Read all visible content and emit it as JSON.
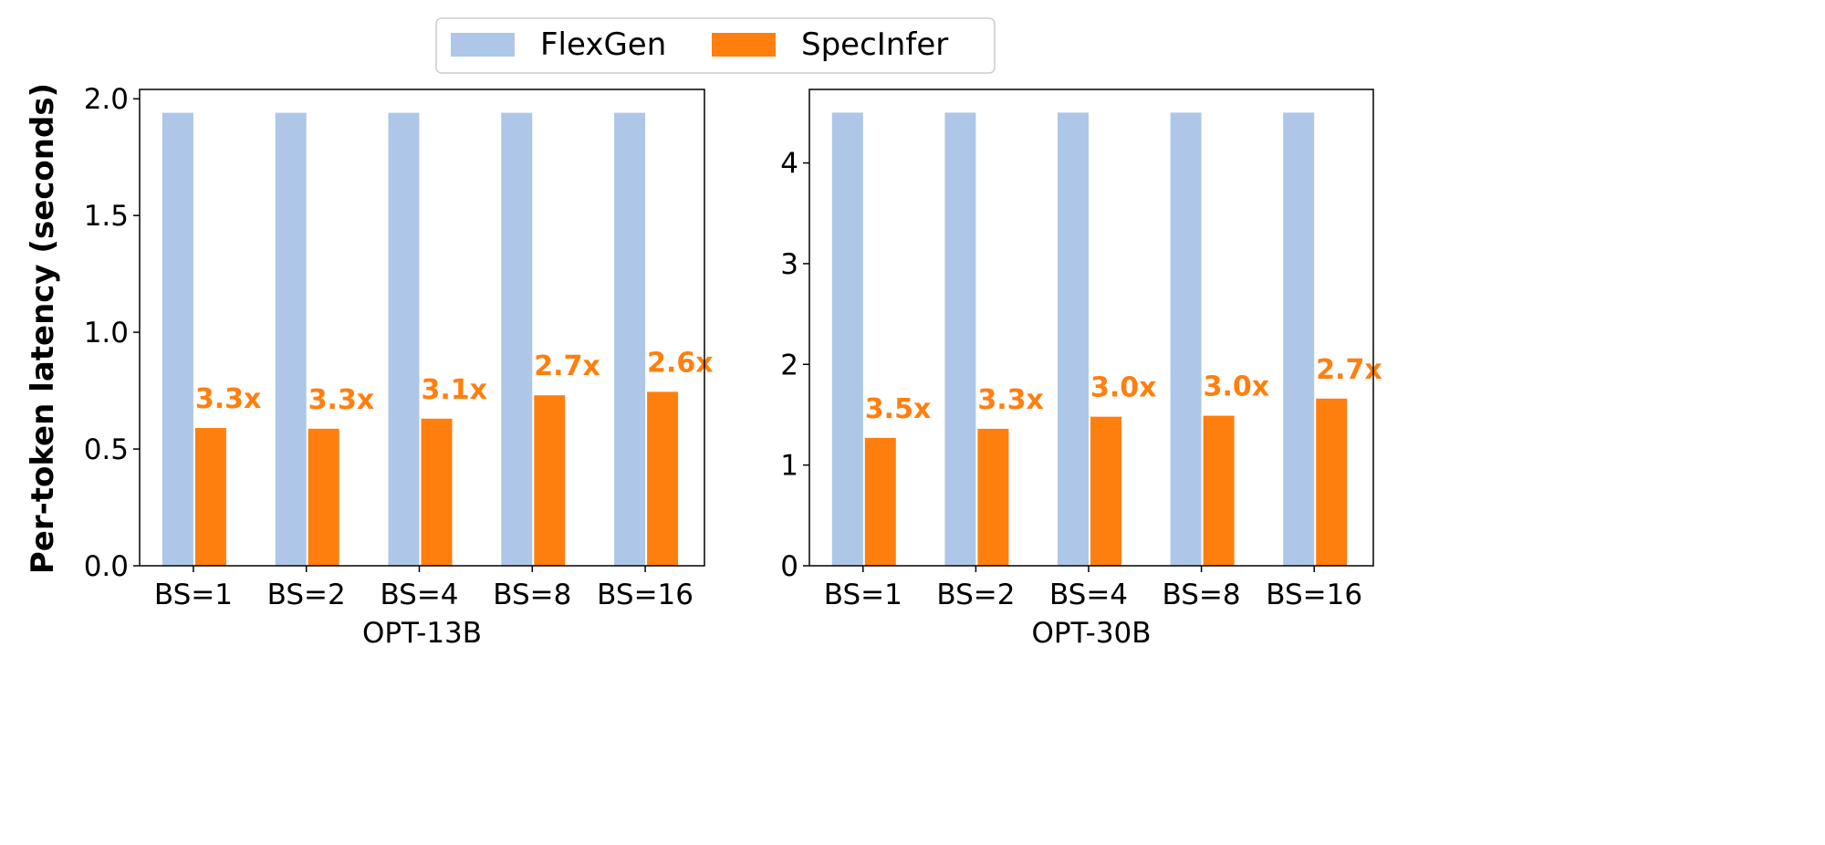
{
  "legend": {
    "placement": "top-center",
    "items": [
      {
        "label": "FlexGen",
        "color": "#aec7e8"
      },
      {
        "label": "SpecInfer",
        "color": "#ff7f0e"
      }
    ]
  },
  "ylabel": "Per-token latency (seconds)",
  "chart_data": [
    {
      "type": "bar",
      "xlabel": "OPT-13B",
      "ylabel": "Per-token latency (seconds)",
      "categories": [
        "BS=1",
        "BS=2",
        "BS=4",
        "BS=8",
        "BS=16"
      ],
      "ylim": [
        0,
        2.04
      ],
      "yticks": [
        "0.0",
        "0.5",
        "1.0",
        "1.5",
        "2.0"
      ],
      "ytick_values": [
        0,
        0.5,
        1.0,
        1.5,
        2.0
      ],
      "grid": false,
      "series": [
        {
          "name": "FlexGen",
          "values": [
            1.94,
            1.94,
            1.94,
            1.94,
            1.94
          ]
        },
        {
          "name": "SpecInfer",
          "values": [
            0.59,
            0.587,
            0.63,
            0.73,
            0.745
          ]
        }
      ],
      "annotations": [
        "3.3x",
        "3.3x",
        "3.1x",
        "2.7x",
        "2.6x"
      ]
    },
    {
      "type": "bar",
      "xlabel": "OPT-30B",
      "categories": [
        "BS=1",
        "BS=2",
        "BS=4",
        "BS=8",
        "BS=16"
      ],
      "ylim": [
        0,
        4.73
      ],
      "yticks": [
        "0",
        "1",
        "2",
        "3",
        "4"
      ],
      "ytick_values": [
        0,
        1,
        2,
        3,
        4
      ],
      "grid": false,
      "series": [
        {
          "name": "FlexGen",
          "values": [
            4.5,
            4.5,
            4.5,
            4.5,
            4.5
          ]
        },
        {
          "name": "SpecInfer",
          "values": [
            1.27,
            1.36,
            1.48,
            1.49,
            1.66
          ]
        }
      ],
      "annotations": [
        "3.5x",
        "3.3x",
        "3.0x",
        "3.0x",
        "2.7x"
      ]
    }
  ]
}
